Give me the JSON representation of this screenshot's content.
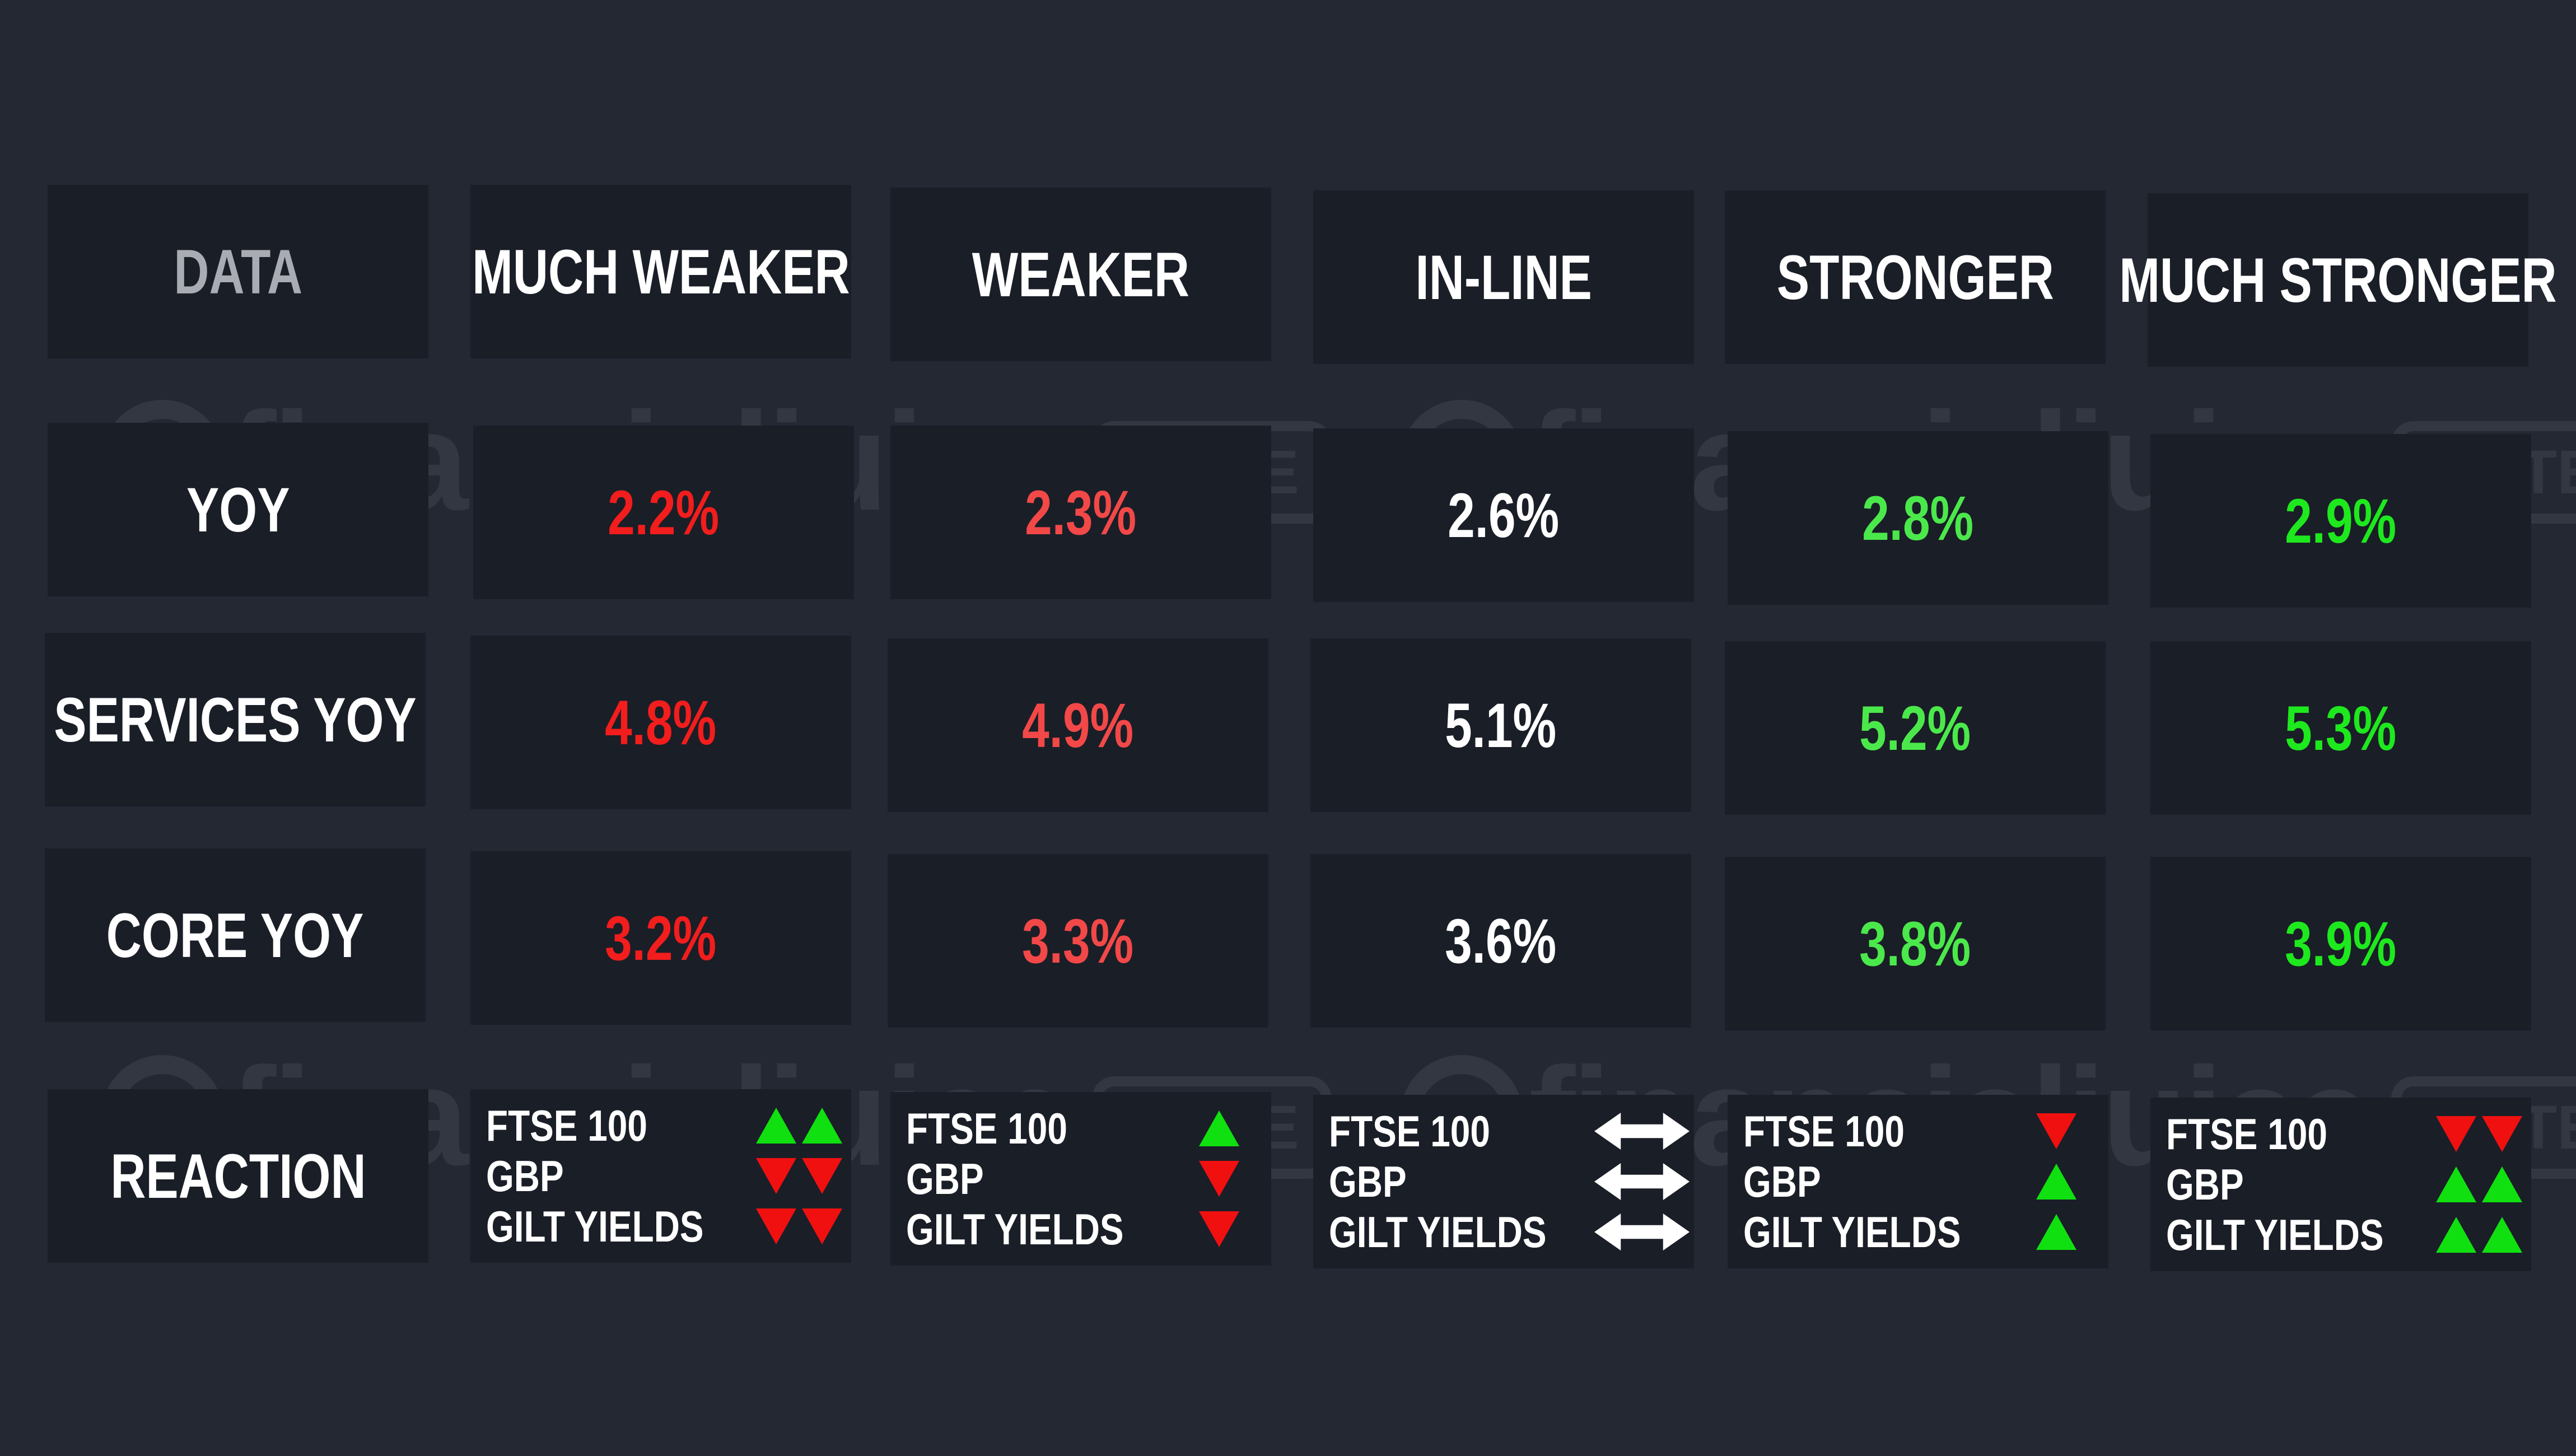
{
  "colors": {
    "background": "#232833",
    "cell": "#1a1e27",
    "much_weaker": "#f21d1d",
    "weaker": "#f24848",
    "in_line": "#ffffff",
    "stronger": "#4be84b",
    "much_stronger": "#1ee81e",
    "arrow_up": "#10e010",
    "arrow_down": "#f01010",
    "arrow_neutral": "#ffffff"
  },
  "table": {
    "headers": [
      "DATA",
      "MUCH WEAKER",
      "WEAKER",
      "IN-LINE",
      "STRONGER",
      "MUCH STRONGER"
    ],
    "rows": [
      {
        "label": "YOY",
        "values": [
          "2.2%",
          "2.3%",
          "2.6%",
          "2.8%",
          "2.9%"
        ]
      },
      {
        "label": "SERVICES YOY",
        "values": [
          "4.8%",
          "4.9%",
          "5.1%",
          "5.2%",
          "5.3%"
        ]
      },
      {
        "label": "CORE YOY",
        "values": [
          "3.2%",
          "3.3%",
          "3.6%",
          "3.8%",
          "3.9%"
        ]
      }
    ],
    "reaction": {
      "label": "REACTION",
      "assets": [
        "FTSE 100",
        "GBP",
        "GILT YIELDS"
      ],
      "arrows": [
        [
          [
            "up-arrow-icon",
            "up-arrow-icon"
          ],
          [
            "down-arrow-icon",
            "down-arrow-icon"
          ],
          [
            "down-arrow-icon",
            "down-arrow-icon"
          ]
        ],
        [
          [
            "up-arrow-icon"
          ],
          [
            "down-arrow-icon"
          ],
          [
            "down-arrow-icon"
          ]
        ],
        [
          [
            "double-headed-arrow-icon"
          ],
          [
            "double-headed-arrow-icon"
          ],
          [
            "double-headed-arrow-icon"
          ]
        ],
        [
          [
            "down-arrow-icon"
          ],
          [
            "up-arrow-icon"
          ],
          [
            "up-arrow-icon"
          ]
        ],
        [
          [
            "down-arrow-icon",
            "down-arrow-icon"
          ],
          [
            "up-arrow-icon",
            "up-arrow-icon"
          ],
          [
            "up-arrow-icon",
            "up-arrow-icon"
          ]
        ]
      ]
    }
  },
  "watermark": {
    "brand": "financialjuice",
    "badge": "ELITE"
  }
}
